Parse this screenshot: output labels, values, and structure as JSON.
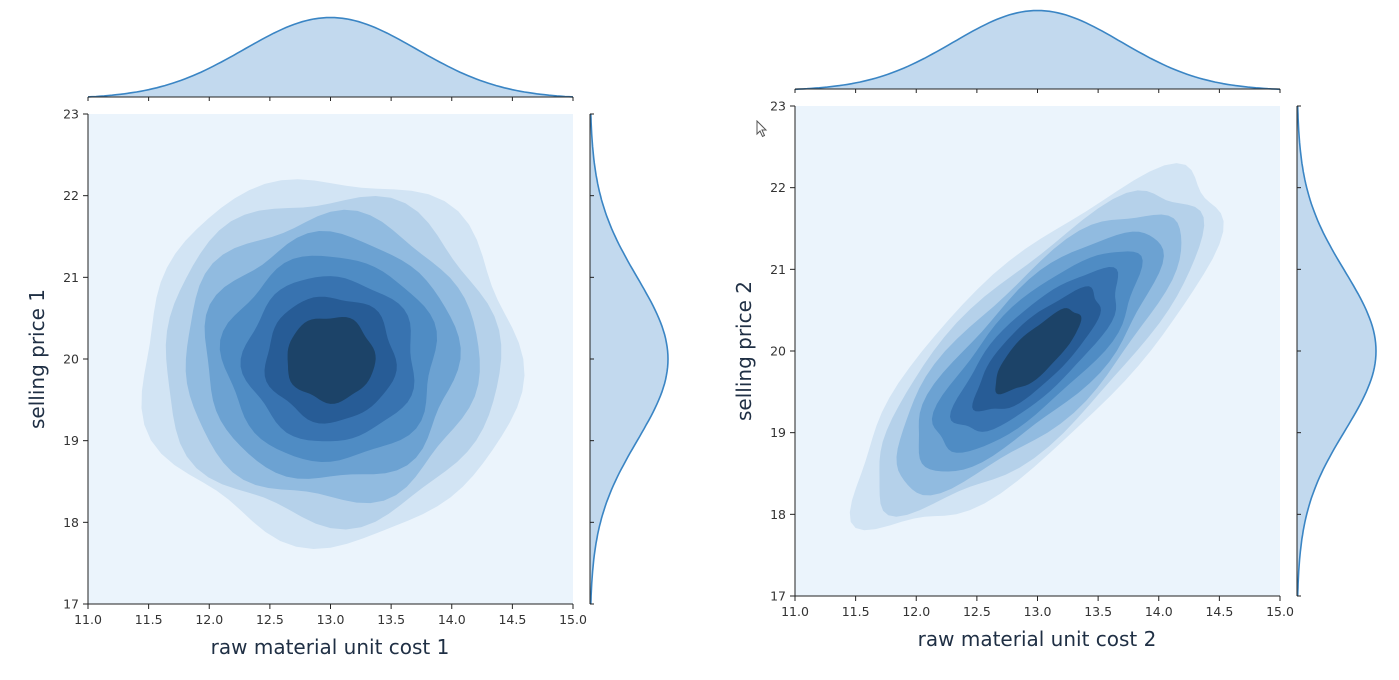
{
  "chart_data": [
    {
      "type": "jointplot-kde",
      "xlabel": "raw material unit cost 1",
      "ylabel": "selling price 1",
      "xlim": [
        11.0,
        15.0
      ],
      "ylim": [
        17,
        23
      ],
      "xticks": [
        "11.0",
        "11.5",
        "12.0",
        "12.5",
        "13.0",
        "13.5",
        "14.0",
        "14.5",
        "15.0"
      ],
      "yticks": [
        "17",
        "18",
        "19",
        "20",
        "21",
        "22",
        "23"
      ],
      "x_mean": 13.0,
      "y_mean": 20.0,
      "x_sd": 0.66,
      "y_sd": 0.95,
      "correlation": 0.0,
      "contour_levels": 8
    },
    {
      "type": "jointplot-kde",
      "xlabel": "raw material unit cost 2",
      "ylabel": "selling price 2",
      "xlim": [
        11.0,
        15.0
      ],
      "ylim": [
        17,
        23
      ],
      "xticks": [
        "11.0",
        "11.5",
        "12.0",
        "12.5",
        "13.0",
        "13.5",
        "14.0",
        "14.5",
        "15.0"
      ],
      "yticks": [
        "17",
        "18",
        "19",
        "20",
        "21",
        "22",
        "23"
      ],
      "x_mean": 13.0,
      "y_mean": 20.0,
      "x_sd": 0.64,
      "y_sd": 0.93,
      "correlation": 0.78,
      "contour_levels": 8
    }
  ],
  "colors": {
    "background_fill": "#ebf4fc",
    "marginal_fill": "#c2d9ee",
    "marginal_line": "#3a85c4",
    "levels": [
      "#d2e4f4",
      "#b5d1ea",
      "#91bbe0",
      "#6ca2d2",
      "#4f8cc4",
      "#3873b0",
      "#275c96",
      "#1c4368"
    ]
  }
}
